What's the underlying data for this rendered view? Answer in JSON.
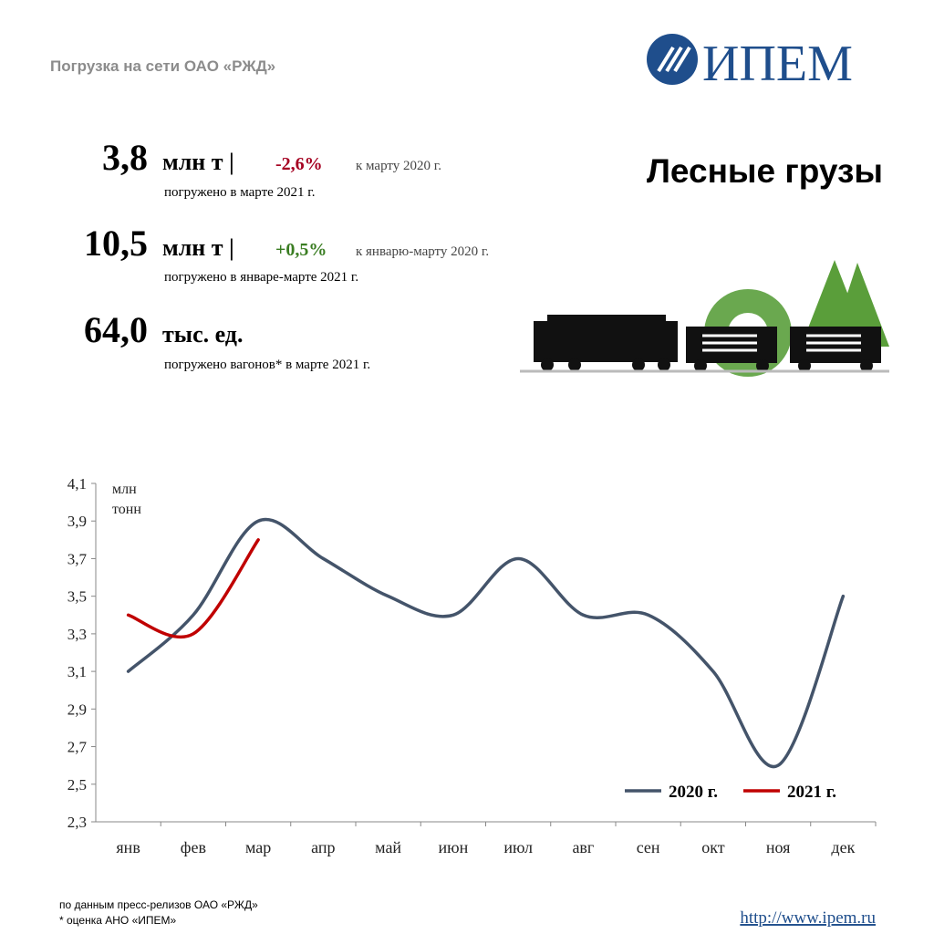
{
  "header": {
    "title": "Погрузка на сети ОАО «РЖД»",
    "logo": "ИПЕМ",
    "subject": "Лесные грузы"
  },
  "stats": [
    {
      "value": "3,8",
      "unit": "млн т |",
      "change": "-2,6%",
      "compare": "к марту 2020 г.",
      "note": "погружено в марте 2021 г."
    },
    {
      "value": "10,5",
      "unit": "млн т |",
      "change": "+0,5%",
      "compare": "к январю-марту 2020 г.",
      "note": "погружено в январе-марте 2021 г."
    },
    {
      "value": "64,0",
      "unit": "тыс. ед.",
      "note": "погружено вагонов* в марте 2021 г."
    }
  ],
  "chart_data": {
    "type": "line",
    "y_label": [
      "млн",
      "тонн"
    ],
    "categories": [
      "янв",
      "фев",
      "мар",
      "апр",
      "май",
      "июн",
      "июл",
      "авг",
      "сен",
      "окт",
      "ноя",
      "дек"
    ],
    "series": [
      {
        "name": "2020 г.",
        "color": "#44546a",
        "values": [
          3.1,
          3.4,
          3.9,
          3.7,
          3.5,
          3.4,
          3.7,
          3.4,
          3.4,
          3.1,
          2.6,
          3.5
        ]
      },
      {
        "name": "2021 г.",
        "color": "#c00000",
        "values": [
          3.4,
          3.3,
          3.8,
          null,
          null,
          null,
          null,
          null,
          null,
          null,
          null,
          null
        ]
      }
    ],
    "ylim": [
      2.3,
      4.1
    ],
    "yticks": [
      {
        "value": 2.3,
        "label": "2,3"
      },
      {
        "value": 2.5,
        "label": "2,5"
      },
      {
        "value": 2.7,
        "label": "2,7"
      },
      {
        "value": 2.9,
        "label": "2,9"
      },
      {
        "value": 3.1,
        "label": "3,1"
      },
      {
        "value": 3.3,
        "label": "3,3"
      },
      {
        "value": 3.5,
        "label": "3,5"
      },
      {
        "value": 3.7,
        "label": "3,7"
      },
      {
        "value": 3.9,
        "label": "3,9"
      },
      {
        "value": 4.1,
        "label": "4,1"
      }
    ],
    "grid": false,
    "smooth": true,
    "legend": "lower right"
  },
  "footer": {
    "notes": [
      "по данным  пресс-релизов ОАО «РЖД»",
      "* оценка АНО «ИПЕМ»"
    ],
    "url": "http://www.ipem.ru"
  }
}
